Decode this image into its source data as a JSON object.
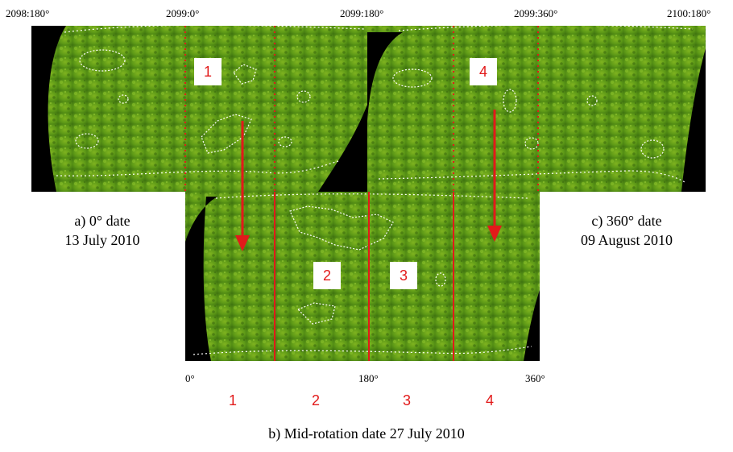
{
  "top_axis": {
    "labels": [
      "2098:180°",
      "2099:0°",
      "2099:180°",
      "2099:360°",
      "2100:180°"
    ]
  },
  "bottom_axis": {
    "labels": [
      "0°",
      "180°",
      "360°"
    ]
  },
  "panels": {
    "a": {
      "caption_line1": "a) 0° date",
      "caption_line2": "13 July 2010"
    },
    "b": {
      "caption": "b) Mid-rotation date 27 July 2010"
    },
    "c": {
      "caption_line1": "c) 360° date",
      "caption_line2": "09 August 2010"
    }
  },
  "region_labels": [
    "1",
    "2",
    "3",
    "4"
  ],
  "colors": {
    "map_green": "#4f8a12",
    "map_green_light": "#8fc72a",
    "map_dark": "#000000",
    "marker_red": "#e21a1a",
    "contour": "#ffffff"
  }
}
